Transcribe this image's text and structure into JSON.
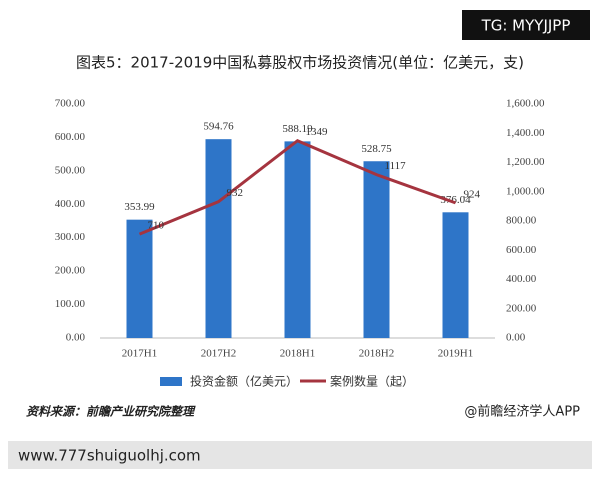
{
  "watermark_box": "TG: MYYJJPP",
  "chart_data": {
    "type": "bar",
    "title": "图表5：2017-2019中国私募股权市场投资情况(单位：亿美元，支)",
    "categories": [
      "2017H1",
      "2017H2",
      "2018H1",
      "2018H2",
      "2019H1"
    ],
    "series": [
      {
        "name": "投资金额（亿美元）",
        "type": "bar",
        "axis": "y",
        "color": "#2e75c8",
        "values": [
          353.99,
          594.76,
          588.19,
          528.75,
          376.04
        ]
      },
      {
        "name": "案例数量（起）",
        "type": "line",
        "axis": "y2",
        "color": "#a5343f",
        "values": [
          710,
          932,
          1349,
          1117,
          924
        ]
      }
    ],
    "ylim": [
      0,
      700
    ],
    "yticks": [
      {
        "value": 0,
        "label": "0.00"
      },
      {
        "value": 100,
        "label": "100.00"
      },
      {
        "value": 200,
        "label": "200.00"
      },
      {
        "value": 300,
        "label": "300.00"
      },
      {
        "value": 400,
        "label": "400.00"
      },
      {
        "value": 500,
        "label": "500.00"
      },
      {
        "value": 600,
        "label": "600.00"
      },
      {
        "value": 700,
        "label": "700.00"
      }
    ],
    "y2lim": [
      0,
      1600
    ],
    "y2ticks": [
      {
        "value": 0,
        "label": "0.00"
      },
      {
        "value": 200,
        "label": "200.00"
      },
      {
        "value": 400,
        "label": "400.00"
      },
      {
        "value": 600,
        "label": "600.00"
      },
      {
        "value": 800,
        "label": "800.00"
      },
      {
        "value": 1000,
        "label": "1,000.00"
      },
      {
        "value": 1200,
        "label": "1,200.00"
      },
      {
        "value": 1400,
        "label": "1,400.00"
      },
      {
        "value": 1600,
        "label": "1,600.00"
      }
    ],
    "legend": "bottom",
    "source": "资料来源：前瞻产业研究院整理",
    "credit": "@前瞻经济学人APP"
  },
  "footer_url": "www.777shuiguolhj.com"
}
